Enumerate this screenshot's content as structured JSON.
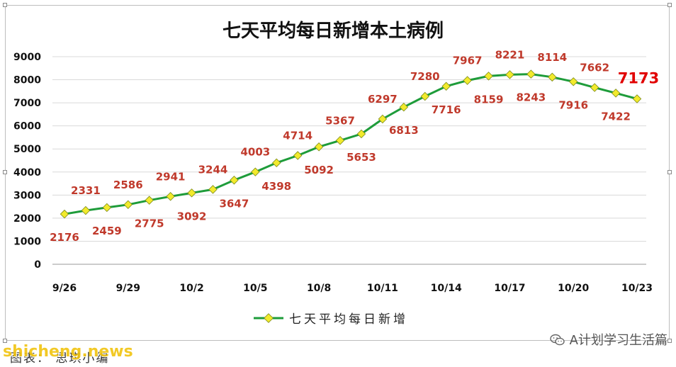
{
  "chart_data": {
    "type": "line",
    "title": "七天平均每日新增本土病例",
    "series": [
      {
        "name": "七天平均每日新增",
        "color": "#1e9c3a",
        "marker_color": "#f2ea2c",
        "values": [
          2176,
          2331,
          2459,
          2586,
          2775,
          2941,
          3092,
          3244,
          3647,
          4003,
          4398,
          4714,
          5092,
          5367,
          5653,
          6297,
          6813,
          7280,
          7716,
          7967,
          8159,
          8221,
          8243,
          8114,
          7916,
          7662,
          7422,
          7173
        ]
      }
    ],
    "x_tick_labels": [
      "9/26",
      "9/29",
      "10/2",
      "10/5",
      "10/8",
      "10/11",
      "10/14",
      "10/17",
      "10/20",
      "10/23"
    ],
    "x_tick_positions": [
      0,
      3,
      6,
      9,
      12,
      15,
      18,
      21,
      24,
      27
    ],
    "y_tick_labels": [
      "0",
      "1000",
      "2000",
      "3000",
      "4000",
      "5000",
      "6000",
      "7000",
      "8000",
      "9000"
    ],
    "ylim": [
      0,
      9000
    ],
    "grid": "horizontal",
    "legend_placement": "bottom",
    "label_color": "#c0392b",
    "label_offsets": [
      1,
      -1,
      1,
      -1,
      1,
      -1,
      1,
      -1,
      1,
      -1,
      1,
      -1,
      1,
      -1,
      1,
      -1,
      1,
      -1,
      1,
      -1,
      1,
      -1,
      1,
      -1,
      1,
      -1,
      1,
      -1
    ],
    "highlight_last_label": true
  },
  "footer": {
    "caption": "图表： 思琪小编",
    "watermark": "shicheng.news",
    "wechat_label": "A计划学习生活篇"
  }
}
